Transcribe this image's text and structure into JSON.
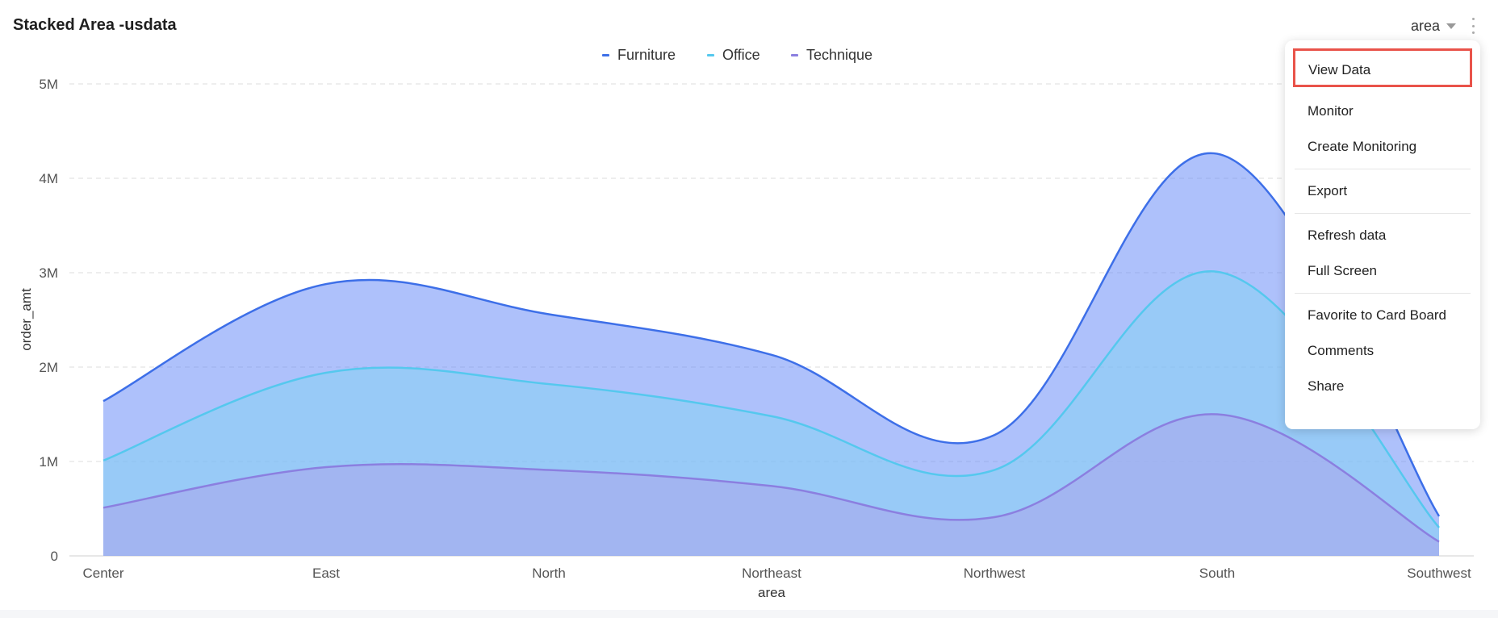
{
  "header": {
    "title": "Stacked Area -usdata",
    "dimension_select": "area"
  },
  "colors": {
    "furniture": "#3d6fe8",
    "office": "#55c8ee",
    "technique": "#8b7fe0",
    "highlight_border": "#e9534a"
  },
  "chart_data": {
    "type": "area",
    "stacked": true,
    "categories": [
      "Center",
      "East",
      "North",
      "Northeast",
      "Northwest",
      "South",
      "Southwest"
    ],
    "series": [
      {
        "name": "Furniture",
        "values": [
          630000,
          940000,
          740000,
          650000,
          370000,
          1250000,
          120000
        ]
      },
      {
        "name": "Office",
        "values": [
          500000,
          1000000,
          910000,
          740000,
          500000,
          1510000,
          150000
        ]
      },
      {
        "name": "Technique",
        "values": [
          510000,
          940000,
          910000,
          740000,
          410000,
          1500000,
          150000
        ]
      }
    ],
    "xlabel": "area",
    "ylabel": "order_amt",
    "ylim": [
      0,
      5000000
    ],
    "yticks": [
      "0",
      "1M",
      "2M",
      "3M",
      "4M",
      "5M"
    ],
    "grid": true,
    "legend": "top-center"
  },
  "menu": {
    "items": [
      {
        "label": "View Data",
        "group": 0
      },
      {
        "label": "Monitor",
        "group": 1
      },
      {
        "label": "Create Monitoring",
        "group": 1
      },
      {
        "label": "Export",
        "group": 2
      },
      {
        "label": "Refresh data",
        "group": 3
      },
      {
        "label": "Full Screen",
        "group": 3
      },
      {
        "label": "Favorite to Card Board",
        "group": 4
      },
      {
        "label": "Comments",
        "group": 4
      },
      {
        "label": "Share",
        "group": 4
      }
    ]
  }
}
